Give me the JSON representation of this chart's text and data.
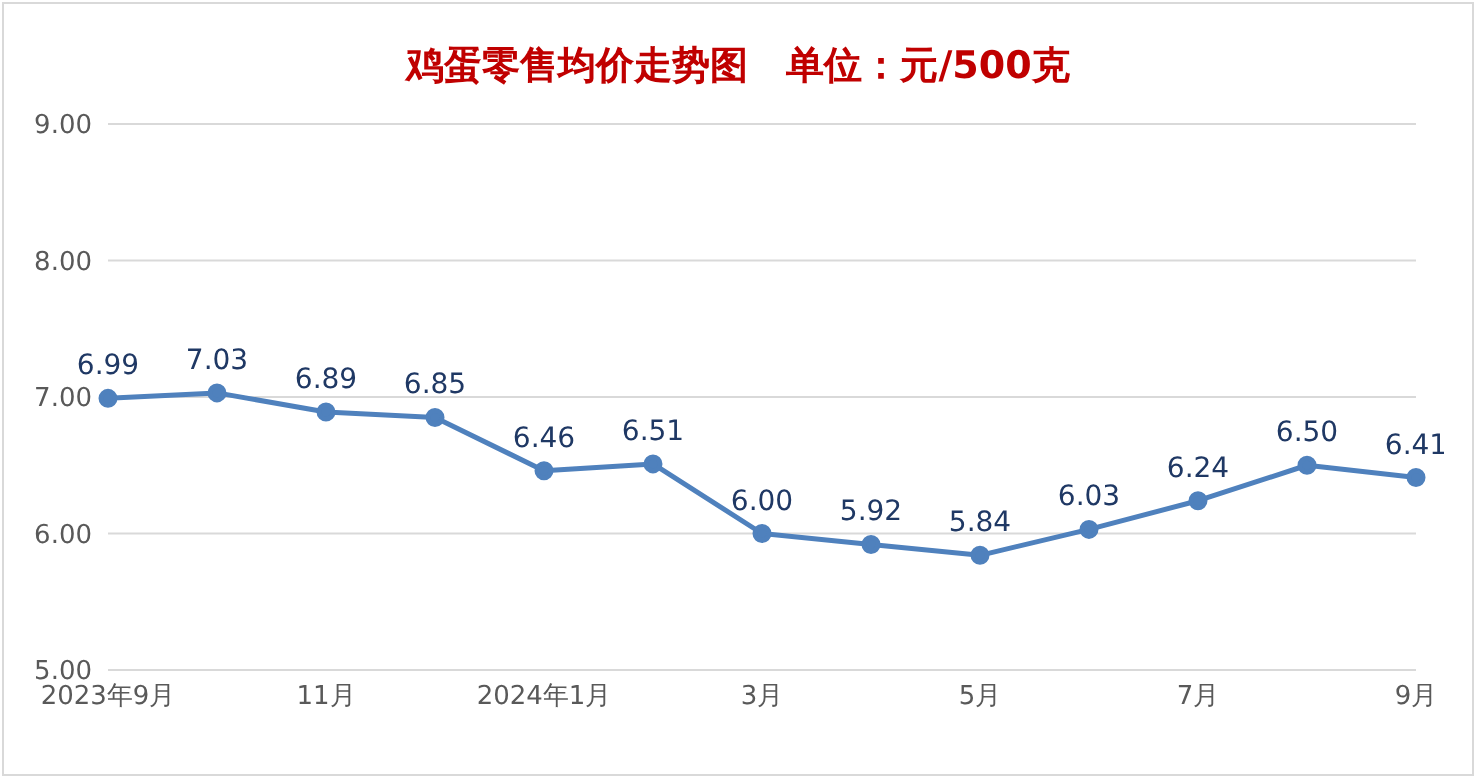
{
  "chart_data": {
    "type": "line",
    "title": "鸡蛋零售均价走势图　单位：元/500克",
    "categories": [
      "2023年9月",
      null,
      "11月",
      null,
      "2024年1月",
      null,
      "3月",
      null,
      "5月",
      null,
      "7月",
      null,
      "9月"
    ],
    "series": [
      {
        "color": "#4f81bd",
        "values": [
          6.99,
          7.03,
          6.89,
          6.85,
          6.46,
          6.51,
          6.0,
          5.92,
          5.84,
          6.03,
          6.24,
          6.5,
          6.41
        ],
        "value_labels": [
          "6.99",
          "7.03",
          "6.89",
          "6.85",
          "6.46",
          "6.51",
          "6.00",
          "5.92",
          "5.84",
          "6.03",
          "6.24",
          "6.50",
          "6.41"
        ]
      }
    ],
    "ylim": [
      5,
      9
    ],
    "yticks": [
      {
        "value": 5,
        "label": "5.00"
      },
      {
        "value": 6,
        "label": "6.00"
      },
      {
        "value": 7,
        "label": "7.00"
      },
      {
        "value": 8,
        "label": "8.00"
      },
      {
        "value": 9,
        "label": "9.00"
      }
    ],
    "grid": "y",
    "legend": false,
    "marker": "circle",
    "line_style": "solid"
  }
}
